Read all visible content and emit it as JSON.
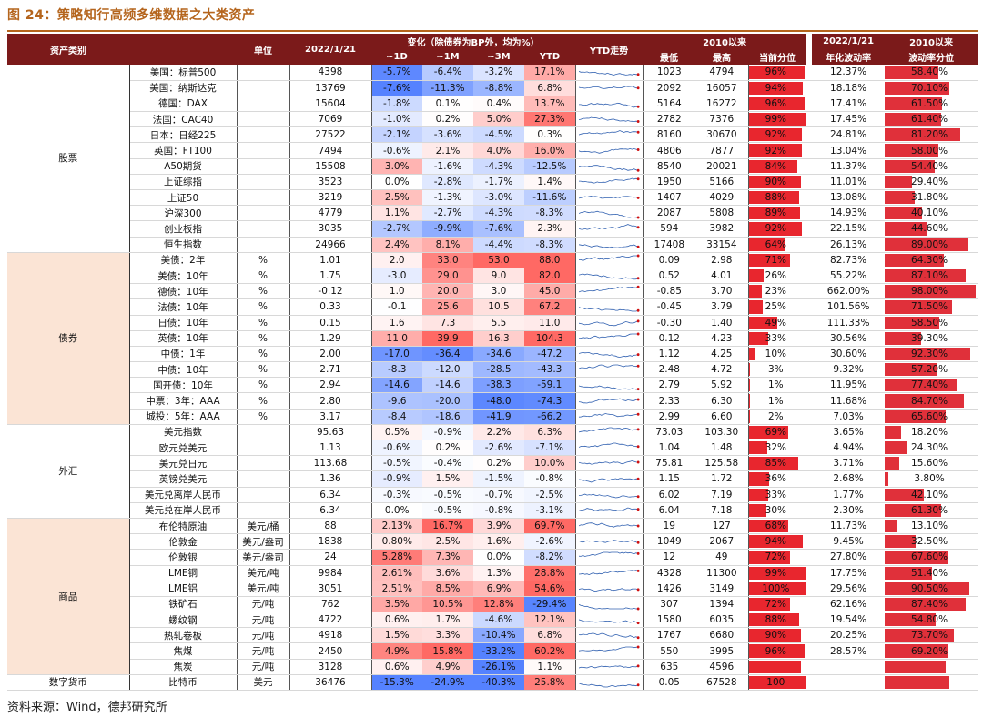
{
  "figure_title": "图 24：策略知行高频多维数据之大类资产",
  "source": "资料来源：Wind，德邦研究所",
  "watermark": "策略知行",
  "headers": {
    "asset_class": "资产类别",
    "unit": "单位",
    "date": "2022/1/21",
    "change_group": "变化（除债券为BP外，均为%）",
    "d1": "~1D",
    "m1": "~1M",
    "m3": "~3M",
    "ytd": "YTD",
    "ytd_trend": "YTD走势",
    "since2010": "2010以来",
    "low": "最低",
    "high": "最高",
    "pctile": "当前分位",
    "vol_date": "2022/1/21",
    "vol_label": "年化波动率",
    "vol_since": "2010以来",
    "vol_pct": "波动率分位"
  },
  "colors": {
    "header_bg": "#7b1a1a",
    "title": "#b5651d",
    "bar_red": "#e8262e",
    "neg_strong": "#5b7fd6",
    "pos_strong": "#f07070"
  },
  "groups": [
    {
      "name": "股票",
      "rows": [
        {
          "name": "美国：标普500",
          "unit": "",
          "value": "4398",
          "d1": "-5.7%",
          "m1": "-6.4%",
          "m3": "-3.2%",
          "ytd": "17.1%",
          "low": "1023",
          "high": "4794",
          "pct": "96%",
          "pctv": 0.96,
          "vol": "12.37%",
          "volp": "58.40%",
          "volpv": 0.584
        },
        {
          "name": "美国：纳斯达克",
          "unit": "",
          "value": "13769",
          "d1": "-7.6%",
          "m1": "-11.3%",
          "m3": "-8.8%",
          "ytd": "6.8%",
          "low": "2092",
          "high": "16057",
          "pct": "94%",
          "pctv": 0.94,
          "vol": "18.18%",
          "volp": "70.10%",
          "volpv": 0.701
        },
        {
          "name": "德国：DAX",
          "unit": "",
          "value": "15604",
          "d1": "-1.8%",
          "m1": "0.1%",
          "m3": "0.4%",
          "ytd": "13.7%",
          "low": "5164",
          "high": "16272",
          "pct": "96%",
          "pctv": 0.96,
          "vol": "17.41%",
          "volp": "61.50%",
          "volpv": 0.615
        },
        {
          "name": "法国：CAC40",
          "unit": "",
          "value": "7069",
          "d1": "-1.0%",
          "m1": "0.2%",
          "m3": "5.0%",
          "ytd": "27.3%",
          "low": "2782",
          "high": "7376",
          "pct": "99%",
          "pctv": 0.99,
          "vol": "17.45%",
          "volp": "61.40%",
          "volpv": 0.614
        },
        {
          "name": "日本：日经225",
          "unit": "",
          "value": "27522",
          "d1": "-2.1%",
          "m1": "-3.6%",
          "m3": "-4.5%",
          "ytd": "0.3%",
          "low": "8160",
          "high": "30670",
          "pct": "92%",
          "pctv": 0.92,
          "vol": "24.81%",
          "volp": "81.20%",
          "volpv": 0.812
        },
        {
          "name": "英国：FT100",
          "unit": "",
          "value": "7494",
          "d1": "-0.6%",
          "m1": "2.1%",
          "m3": "4.0%",
          "ytd": "16.0%",
          "low": "4806",
          "high": "7877",
          "pct": "92%",
          "pctv": 0.92,
          "vol": "13.04%",
          "volp": "58.00%",
          "volpv": 0.58
        },
        {
          "name": "A50期货",
          "unit": "",
          "value": "15508",
          "d1": "3.0%",
          "m1": "-1.6%",
          "m3": "-4.3%",
          "ytd": "-12.5%",
          "low": "8540",
          "high": "20021",
          "pct": "84%",
          "pctv": 0.84,
          "vol": "11.37%",
          "volp": "54.40%",
          "volpv": 0.544
        },
        {
          "name": "上证综指",
          "unit": "",
          "value": "3523",
          "d1": "0.0%",
          "m1": "-2.8%",
          "m3": "-1.7%",
          "ytd": "1.4%",
          "low": "1950",
          "high": "5166",
          "pct": "90%",
          "pctv": 0.9,
          "vol": "11.01%",
          "volp": "29.40%",
          "volpv": 0.294
        },
        {
          "name": "上证50",
          "unit": "",
          "value": "3219",
          "d1": "2.5%",
          "m1": "-1.3%",
          "m3": "-3.0%",
          "ytd": "-11.6%",
          "low": "1407",
          "high": "4029",
          "pct": "88%",
          "pctv": 0.88,
          "vol": "13.08%",
          "volp": "31.80%",
          "volpv": 0.318
        },
        {
          "name": "沪深300",
          "unit": "",
          "value": "4779",
          "d1": "1.1%",
          "m1": "-2.7%",
          "m3": "-4.3%",
          "ytd": "-8.3%",
          "low": "2087",
          "high": "5808",
          "pct": "89%",
          "pctv": 0.89,
          "vol": "14.93%",
          "volp": "40.10%",
          "volpv": 0.401
        },
        {
          "name": "创业板指",
          "unit": "",
          "value": "3035",
          "d1": "-2.7%",
          "m1": "-9.9%",
          "m3": "-7.6%",
          "ytd": "2.3%",
          "low": "594",
          "high": "3982",
          "pct": "92%",
          "pctv": 0.92,
          "vol": "22.15%",
          "volp": "44.60%",
          "volpv": 0.446
        },
        {
          "name": "恒生指数",
          "unit": "",
          "value": "24966",
          "d1": "2.4%",
          "m1": "8.1%",
          "m3": "-4.4%",
          "ytd": "-8.3%",
          "low": "17408",
          "high": "33154",
          "pct": "64%",
          "pctv": 0.64,
          "vol": "26.13%",
          "volp": "89.00%",
          "volpv": 0.89
        }
      ]
    },
    {
      "name": "债券",
      "rows": [
        {
          "name": "美债：2年",
          "unit": "%",
          "value": "1.01",
          "d1": "2.0",
          "m1": "33.0",
          "m3": "53.0",
          "ytd": "88.0",
          "low": "0.09",
          "high": "2.98",
          "pct": "71%",
          "pctv": 0.71,
          "vol": "82.73%",
          "volp": "64.30%",
          "volpv": 0.643
        },
        {
          "name": "美债：10年",
          "unit": "%",
          "value": "1.75",
          "d1": "-3.0",
          "m1": "29.0",
          "m3": "9.0",
          "ytd": "82.0",
          "low": "0.52",
          "high": "4.01",
          "pct": "26%",
          "pctv": 0.26,
          "vol": "55.22%",
          "volp": "87.10%",
          "volpv": 0.871
        },
        {
          "name": "德债：10年",
          "unit": "%",
          "value": "-0.12",
          "d1": "1.0",
          "m1": "20.0",
          "m3": "3.0",
          "ytd": "45.0",
          "low": "-0.85",
          "high": "3.70",
          "pct": "23%",
          "pctv": 0.23,
          "vol": "662.00%",
          "volp": "98.00%",
          "volpv": 0.98
        },
        {
          "name": "法债：10年",
          "unit": "%",
          "value": "0.33",
          "d1": "-0.1",
          "m1": "25.6",
          "m3": "10.5",
          "ytd": "67.2",
          "low": "-0.45",
          "high": "3.79",
          "pct": "25%",
          "pctv": 0.25,
          "vol": "101.56%",
          "volp": "71.50%",
          "volpv": 0.715
        },
        {
          "name": "日债：10年",
          "unit": "%",
          "value": "0.15",
          "d1": "1.6",
          "m1": "7.3",
          "m3": "5.5",
          "ytd": "11.0",
          "low": "-0.30",
          "high": "1.40",
          "pct": "49%",
          "pctv": 0.49,
          "vol": "111.33%",
          "volp": "58.50%",
          "volpv": 0.585
        },
        {
          "name": "英债：10年",
          "unit": "%",
          "value": "1.29",
          "d1": "11.0",
          "m1": "39.9",
          "m3": "16.3",
          "ytd": "104.3",
          "low": "0.12",
          "high": "4.23",
          "pct": "33%",
          "pctv": 0.33,
          "vol": "30.56%",
          "volp": "39.30%",
          "volpv": 0.393
        },
        {
          "name": "中债：1年",
          "unit": "%",
          "value": "2.00",
          "d1": "-17.0",
          "m1": "-36.4",
          "m3": "-34.6",
          "ytd": "-47.2",
          "low": "1.12",
          "high": "4.25",
          "pct": "10%",
          "pctv": 0.1,
          "vol": "30.60%",
          "volp": "92.30%",
          "volpv": 0.923
        },
        {
          "name": "中债：10年",
          "unit": "%",
          "value": "2.71",
          "d1": "-8.3",
          "m1": "-12.0",
          "m3": "-28.5",
          "ytd": "-43.3",
          "low": "2.48",
          "high": "4.72",
          "pct": "3%",
          "pctv": 0.03,
          "vol": "9.32%",
          "volp": "57.20%",
          "volpv": 0.572
        },
        {
          "name": "国开债：10年",
          "unit": "%",
          "value": "2.94",
          "d1": "-14.6",
          "m1": "-14.6",
          "m3": "-38.3",
          "ytd": "-59.1",
          "low": "2.79",
          "high": "5.92",
          "pct": "1%",
          "pctv": 0.01,
          "vol": "11.95%",
          "volp": "77.40%",
          "volpv": 0.774
        },
        {
          "name": "中票：3年：AAA",
          "unit": "%",
          "value": "2.80",
          "d1": "-9.6",
          "m1": "-20.0",
          "m3": "-48.0",
          "ytd": "-74.3",
          "low": "2.33",
          "high": "6.30",
          "pct": "1%",
          "pctv": 0.01,
          "vol": "11.68%",
          "volp": "84.70%",
          "volpv": 0.847
        },
        {
          "name": "城投：5年：AAA",
          "unit": "%",
          "value": "3.17",
          "d1": "-8.4",
          "m1": "-18.6",
          "m3": "-41.9",
          "ytd": "-66.2",
          "low": "2.99",
          "high": "6.60",
          "pct": "2%",
          "pctv": 0.02,
          "vol": "7.03%",
          "volp": "65.60%",
          "volpv": 0.656
        }
      ]
    },
    {
      "name": "外汇",
      "rows": [
        {
          "name": "美元指数",
          "unit": "",
          "value": "95.63",
          "d1": "0.5%",
          "m1": "-0.9%",
          "m3": "2.2%",
          "ytd": "6.3%",
          "low": "73.03",
          "high": "103.30",
          "pct": "69%",
          "pctv": 0.69,
          "vol": "3.65%",
          "volp": "18.20%",
          "volpv": 0.182
        },
        {
          "name": "欧元兑美元",
          "unit": "",
          "value": "1.13",
          "d1": "-0.6%",
          "m1": "0.2%",
          "m3": "-2.6%",
          "ytd": "-7.1%",
          "low": "1.04",
          "high": "1.48",
          "pct": "32%",
          "pctv": 0.32,
          "vol": "4.94%",
          "volp": "24.30%",
          "volpv": 0.243
        },
        {
          "name": "美元兑日元",
          "unit": "",
          "value": "113.68",
          "d1": "-0.5%",
          "m1": "-0.4%",
          "m3": "0.2%",
          "ytd": "10.0%",
          "low": "75.81",
          "high": "125.58",
          "pct": "85%",
          "pctv": 0.85,
          "vol": "3.71%",
          "volp": "15.60%",
          "volpv": 0.156
        },
        {
          "name": "英镑兑美元",
          "unit": "",
          "value": "1.36",
          "d1": "-0.9%",
          "m1": "1.5%",
          "m3": "-1.5%",
          "ytd": "-0.8%",
          "low": "1.15",
          "high": "1.72",
          "pct": "36%",
          "pctv": 0.36,
          "vol": "2.68%",
          "volp": "3.80%",
          "volpv": 0.038
        },
        {
          "name": "美元兑离岸人民币",
          "unit": "",
          "value": "6.34",
          "d1": "-0.3%",
          "m1": "-0.5%",
          "m3": "-0.7%",
          "ytd": "-2.5%",
          "low": "6.02",
          "high": "7.19",
          "pct": "33%",
          "pctv": 0.33,
          "vol": "1.77%",
          "volp": "42.10%",
          "volpv": 0.421
        },
        {
          "name": "美元兑在岸人民币",
          "unit": "",
          "value": "6.34",
          "d1": "0.0%",
          "m1": "-0.5%",
          "m3": "-0.8%",
          "ytd": "-3.1%",
          "low": "6.04",
          "high": "7.18",
          "pct": "30%",
          "pctv": 0.3,
          "vol": "2.30%",
          "volp": "61.30%",
          "volpv": 0.613
        }
      ]
    },
    {
      "name": "商品",
      "rows": [
        {
          "name": "布伦特原油",
          "unit": "美元/桶",
          "value": "88",
          "d1": "2.13%",
          "m1": "16.7%",
          "m3": "3.9%",
          "ytd": "69.7%",
          "low": "19",
          "high": "127",
          "pct": "68%",
          "pctv": 0.68,
          "vol": "11.73%",
          "volp": "13.10%",
          "volpv": 0.131
        },
        {
          "name": "伦敦金",
          "unit": "美元/盎司",
          "value": "1838",
          "d1": "0.80%",
          "m1": "2.5%",
          "m3": "1.6%",
          "ytd": "-2.6%",
          "low": "1049",
          "high": "2067",
          "pct": "94%",
          "pctv": 0.94,
          "vol": "9.45%",
          "volp": "32.50%",
          "volpv": 0.325
        },
        {
          "name": "伦敦银",
          "unit": "美元/盎司",
          "value": "24",
          "d1": "5.28%",
          "m1": "7.3%",
          "m3": "0.0%",
          "ytd": "-8.2%",
          "low": "12",
          "high": "49",
          "pct": "72%",
          "pctv": 0.72,
          "vol": "27.80%",
          "volp": "67.60%",
          "volpv": 0.676
        },
        {
          "name": "LME铜",
          "unit": "美元/吨",
          "value": "9984",
          "d1": "2.61%",
          "m1": "3.6%",
          "m3": "1.3%",
          "ytd": "28.8%",
          "low": "4328",
          "high": "11300",
          "pct": "99%",
          "pctv": 0.99,
          "vol": "17.75%",
          "volp": "51.40%",
          "volpv": 0.514
        },
        {
          "name": "LME铝",
          "unit": "美元/吨",
          "value": "3051",
          "d1": "2.51%",
          "m1": "8.5%",
          "m3": "6.9%",
          "ytd": "54.6%",
          "low": "1426",
          "high": "3149",
          "pct": "100%",
          "pctv": 1.0,
          "vol": "29.56%",
          "volp": "90.50%",
          "volpv": 0.905
        },
        {
          "name": "铁矿石",
          "unit": "元/吨",
          "value": "762",
          "d1": "3.5%",
          "m1": "10.5%",
          "m3": "12.8%",
          "ytd": "-29.4%",
          "low": "307",
          "high": "1394",
          "pct": "72%",
          "pctv": 0.72,
          "vol": "62.16%",
          "volp": "87.40%",
          "volpv": 0.874
        },
        {
          "name": "螺纹钢",
          "unit": "元/吨",
          "value": "4722",
          "d1": "0.6%",
          "m1": "1.7%",
          "m3": "-4.6%",
          "ytd": "12.1%",
          "low": "1580",
          "high": "6035",
          "pct": "88%",
          "pctv": 0.88,
          "vol": "19.54%",
          "volp": "54.80%",
          "volpv": 0.548
        },
        {
          "name": "热轧卷板",
          "unit": "元/吨",
          "value": "4918",
          "d1": "1.5%",
          "m1": "3.3%",
          "m3": "-10.4%",
          "ytd": "6.8%",
          "low": "1767",
          "high": "6680",
          "pct": "90%",
          "pctv": 0.9,
          "vol": "20.25%",
          "volp": "73.70%",
          "volpv": 0.737
        },
        {
          "name": "焦煤",
          "unit": "元/吨",
          "value": "2450",
          "d1": "4.9%",
          "m1": "15.8%",
          "m3": "-33.2%",
          "ytd": "60.2%",
          "low": "550",
          "high": "3995",
          "pct": "96%",
          "pctv": 0.96,
          "vol": "28.57%",
          "volp": "69.20%",
          "volpv": 0.692
        },
        {
          "name": "焦炭",
          "unit": "元/吨",
          "value": "3128",
          "d1": "0.6%",
          "m1": "4.9%",
          "m3": "-26.1%",
          "ytd": "1.1%",
          "low": "635",
          "high": "4596",
          "pct": "",
          "pctv": 0.9,
          "vol": "",
          "volp": "",
          "volpv": 0.66
        }
      ]
    },
    {
      "name": "数字货币",
      "rows": [
        {
          "name": "比特币",
          "unit": "美元",
          "value": "36476",
          "d1": "-15.3%",
          "m1": "-24.9%",
          "m3": "-40.3%",
          "ytd": "25.8%",
          "low": "0.05",
          "high": "67528",
          "pct": "100",
          "pctv": 1.0,
          "vol": "",
          "volp": "",
          "volpv": 0.7
        }
      ]
    }
  ]
}
